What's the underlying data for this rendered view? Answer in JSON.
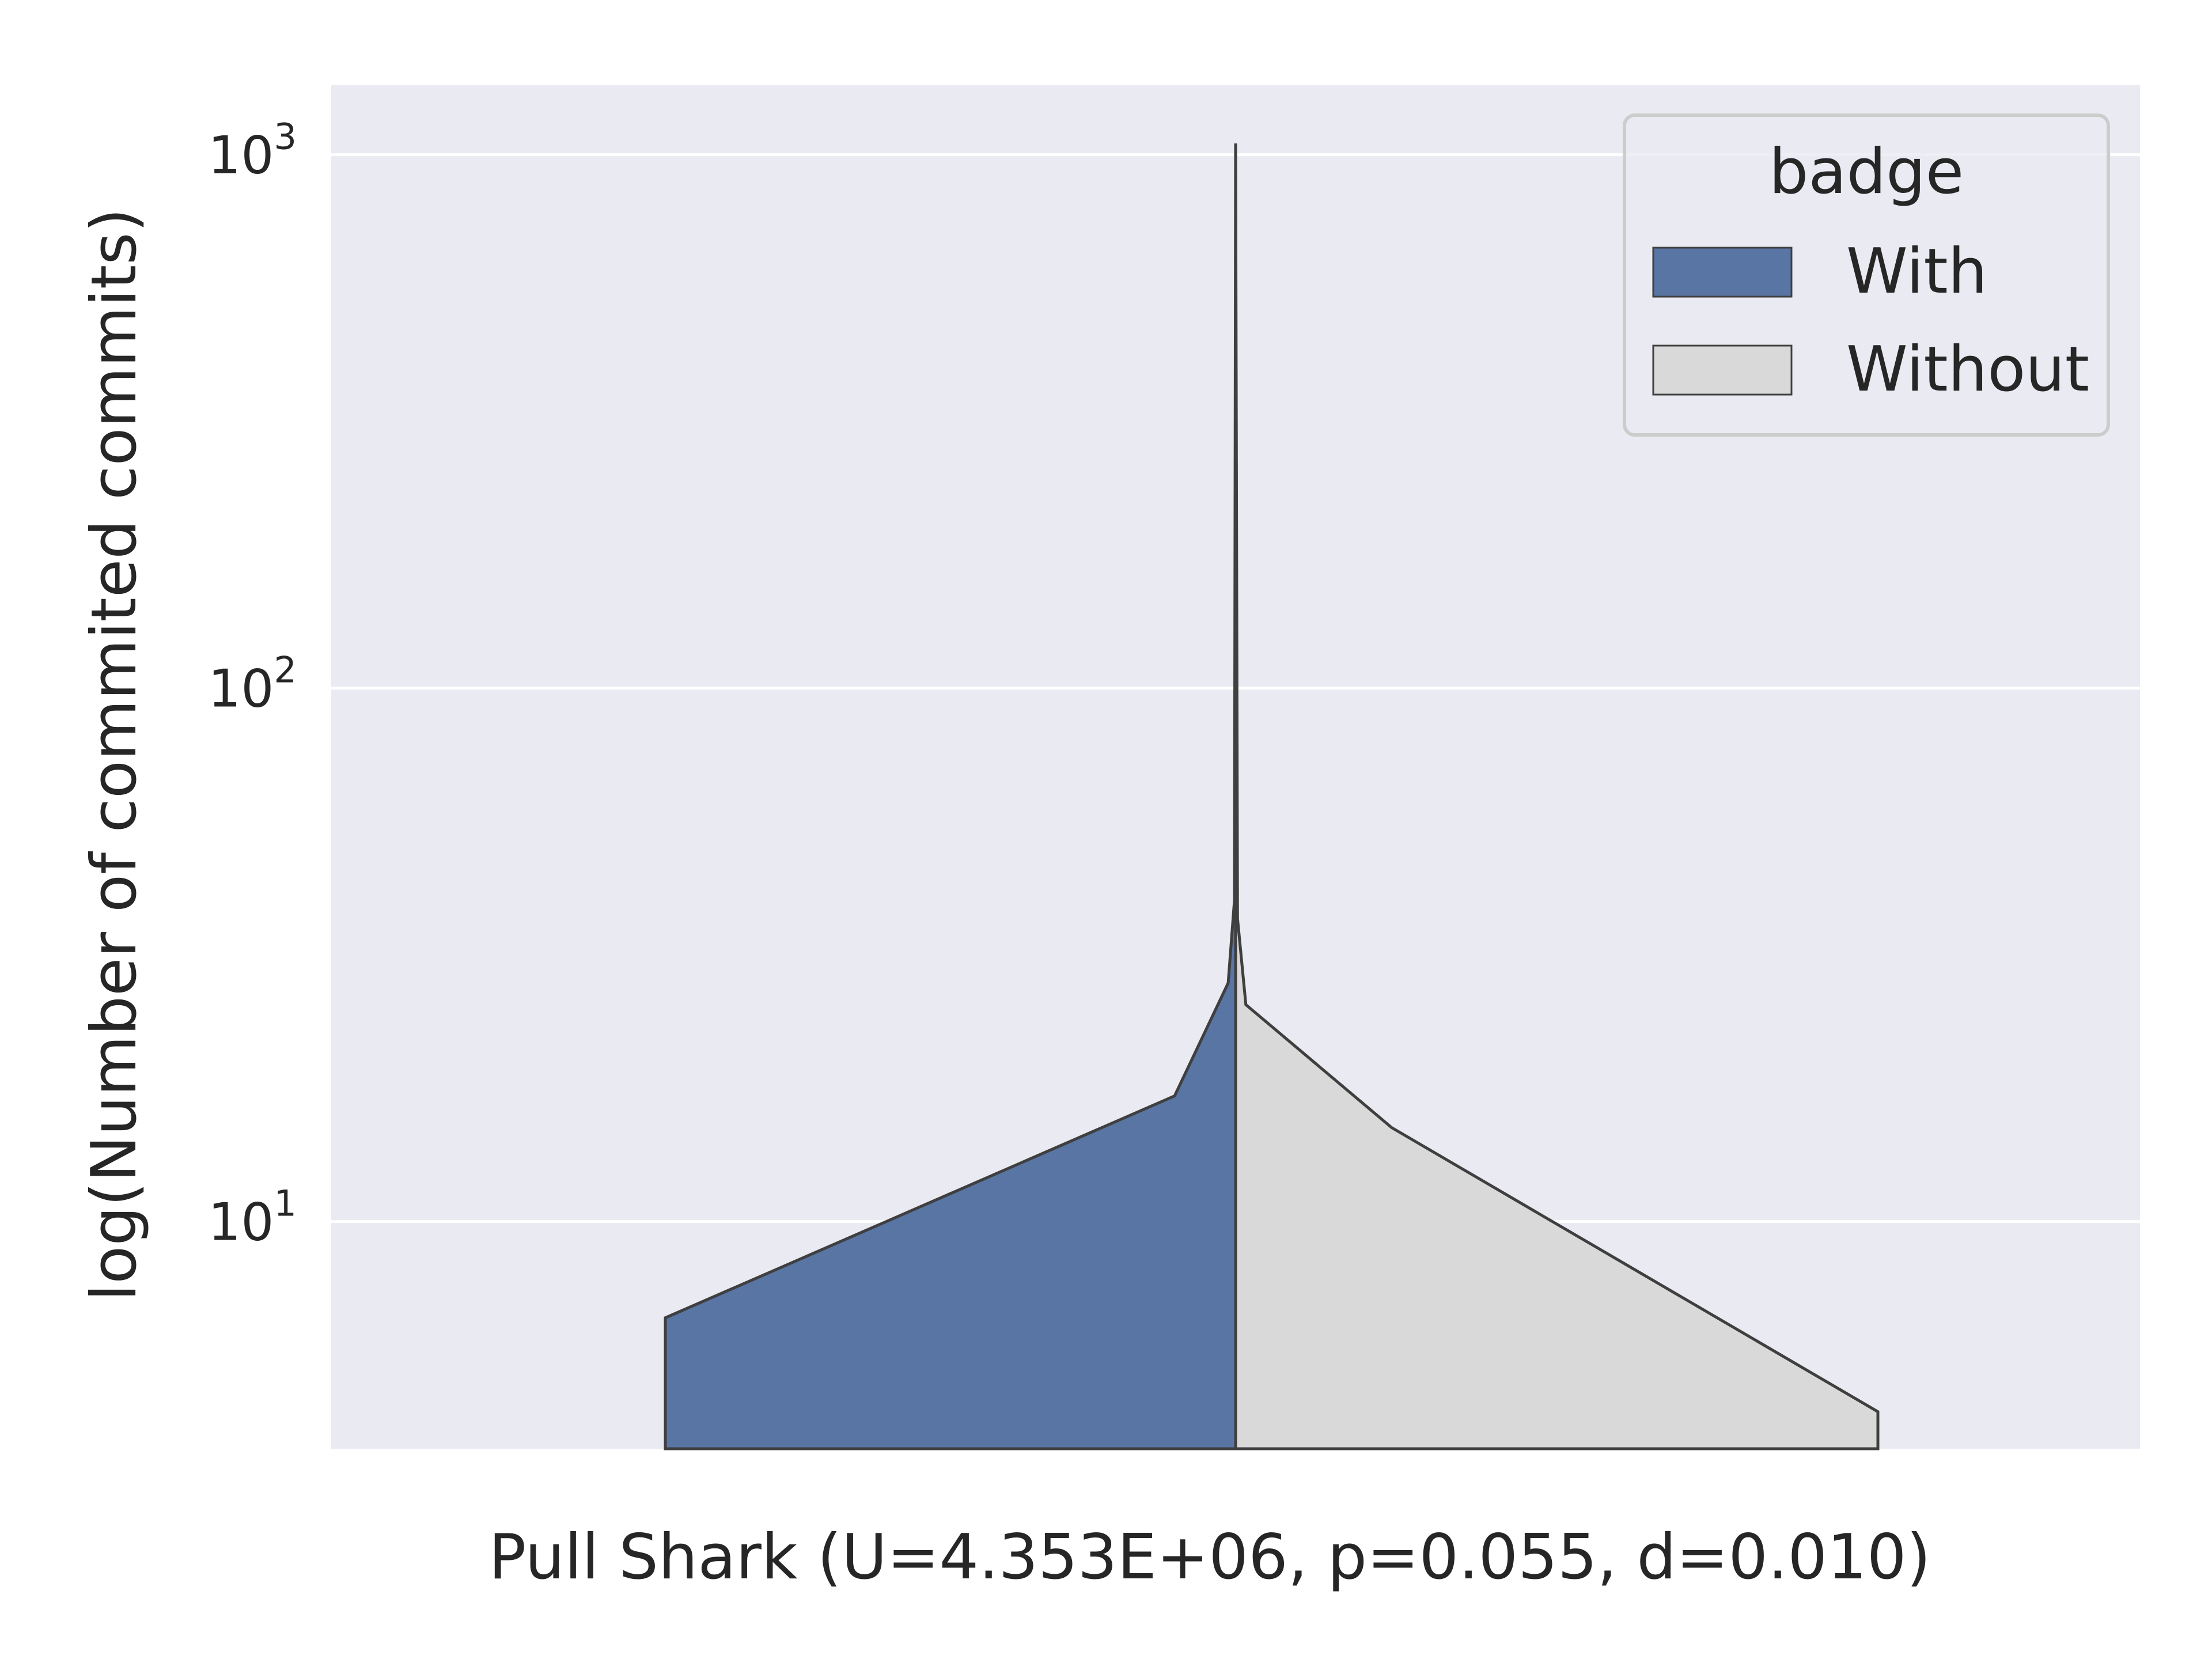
{
  "chart_data": {
    "type": "violin",
    "title": "",
    "xlabel": "Pull Shark (U=4.353E+06, p=0.055, d=0.010)",
    "ylabel": "log(Number of commited commits)",
    "yscale": "log",
    "ylim": [
      3.75,
      1350
    ],
    "yticks": [
      {
        "base": "10",
        "exp": "1",
        "value": 10
      },
      {
        "base": "10",
        "exp": "2",
        "value": 100
      },
      {
        "base": "10",
        "exp": "3",
        "value": 1000
      }
    ],
    "grid": true,
    "legend": {
      "title": "badge",
      "position": "top-right",
      "entries": [
        {
          "label": "With",
          "color": "#5875a4"
        },
        {
          "label": "Without",
          "color": "#d9d9d9"
        }
      ]
    },
    "series": [
      {
        "name": "With",
        "side": "left",
        "color": "#5875a4",
        "profile": [
          {
            "y": 3.75,
            "density": 1.0
          },
          {
            "y": 6.6,
            "density": 1.0
          },
          {
            "y": 17.2,
            "density": 0.107
          },
          {
            "y": 28.0,
            "density": 0.013
          },
          {
            "y": 40.0,
            "density": 0.002
          },
          {
            "y": 1050,
            "density": 0.0
          }
        ]
      },
      {
        "name": "Without",
        "side": "right",
        "color": "#d9d9d9",
        "profile": [
          {
            "y": 3.75,
            "density": 1.0
          },
          {
            "y": 4.4,
            "density": 1.0
          },
          {
            "y": 15.0,
            "density": 0.243
          },
          {
            "y": 25.5,
            "density": 0.016
          },
          {
            "y": 37.0,
            "density": 0.003
          },
          {
            "y": 1050,
            "density": 0.0
          }
        ]
      }
    ],
    "colors": {
      "plot_background": "#eaeaf2",
      "grid": "#ffffff",
      "outline": "#3f3f3f",
      "text": "#262626"
    }
  }
}
